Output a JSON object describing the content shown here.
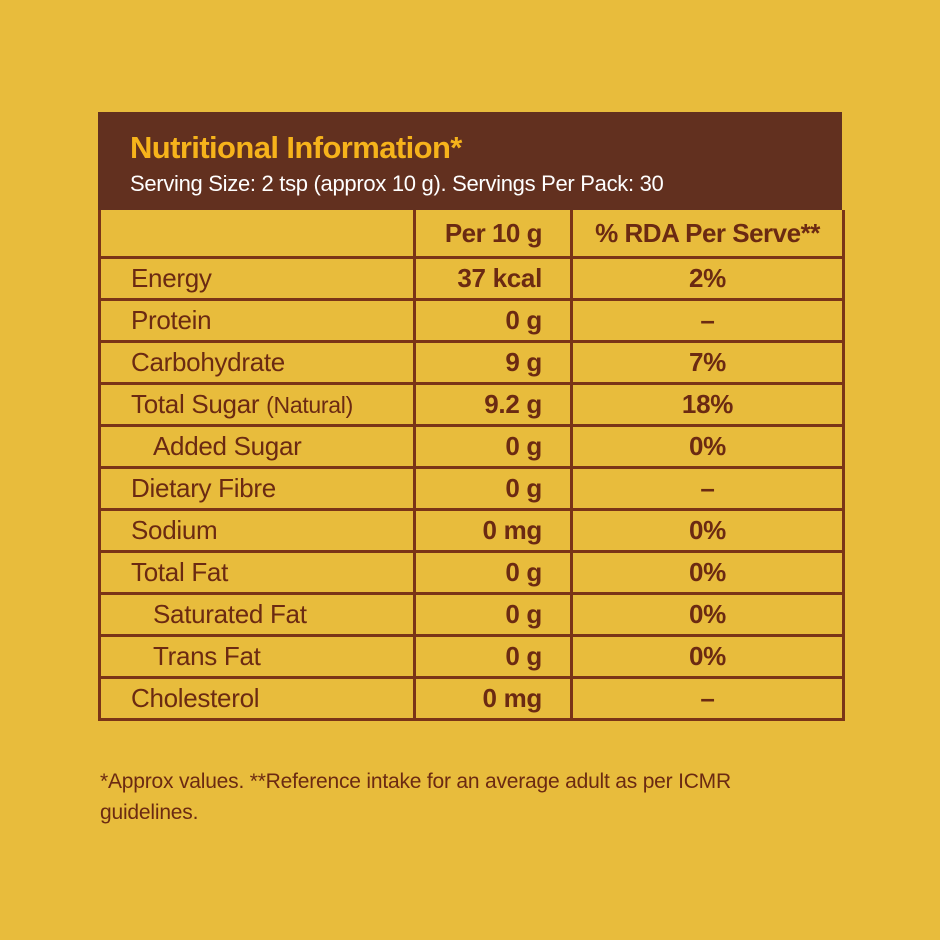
{
  "header": {
    "title": "Nutritional Information*",
    "subtitle": "Serving Size: 2 tsp (approx 10 g). Servings Per Pack: 30"
  },
  "columns": {
    "nutrient": "",
    "per": "Per 10 g",
    "rda": "% RDA Per Serve**"
  },
  "rows": [
    {
      "name": "Energy",
      "note": "",
      "per": "37 kcal",
      "rda": "2%"
    },
    {
      "name": "Protein",
      "note": "",
      "per": "0 g",
      "rda": "–"
    },
    {
      "name": "Carbohydrate",
      "note": "",
      "per": "9 g",
      "rda": "7%"
    },
    {
      "name": "Total Sugar",
      "note": "(Natural)",
      "per": "9.2 g",
      "rda": "18%"
    },
    {
      "name": "Added Sugar",
      "note": "",
      "per": "0 g",
      "rda": "0%"
    },
    {
      "name": "Dietary Fibre",
      "note": "",
      "per": "0 g",
      "rda": "–"
    },
    {
      "name": "Sodium",
      "note": "",
      "per": "0 mg",
      "rda": "0%"
    },
    {
      "name": "Total Fat",
      "note": "",
      "per": "0 g",
      "rda": "0%"
    },
    {
      "name": "Saturated Fat",
      "note": "",
      "per": "0 g",
      "rda": "0%"
    },
    {
      "name": "Trans Fat",
      "note": "",
      "per": "0 g",
      "rda": "0%"
    },
    {
      "name": "Cholesterol",
      "note": "",
      "per": "0 mg",
      "rda": "–"
    }
  ],
  "footnote": "*Approx values. **Reference intake for an average adult as per ICMR guidelines.",
  "colors": {
    "background": "#E8BC3C",
    "header_bg": "#62301F",
    "title": "#F6B31B",
    "text": "#6B2A12",
    "border": "#7A3417"
  }
}
